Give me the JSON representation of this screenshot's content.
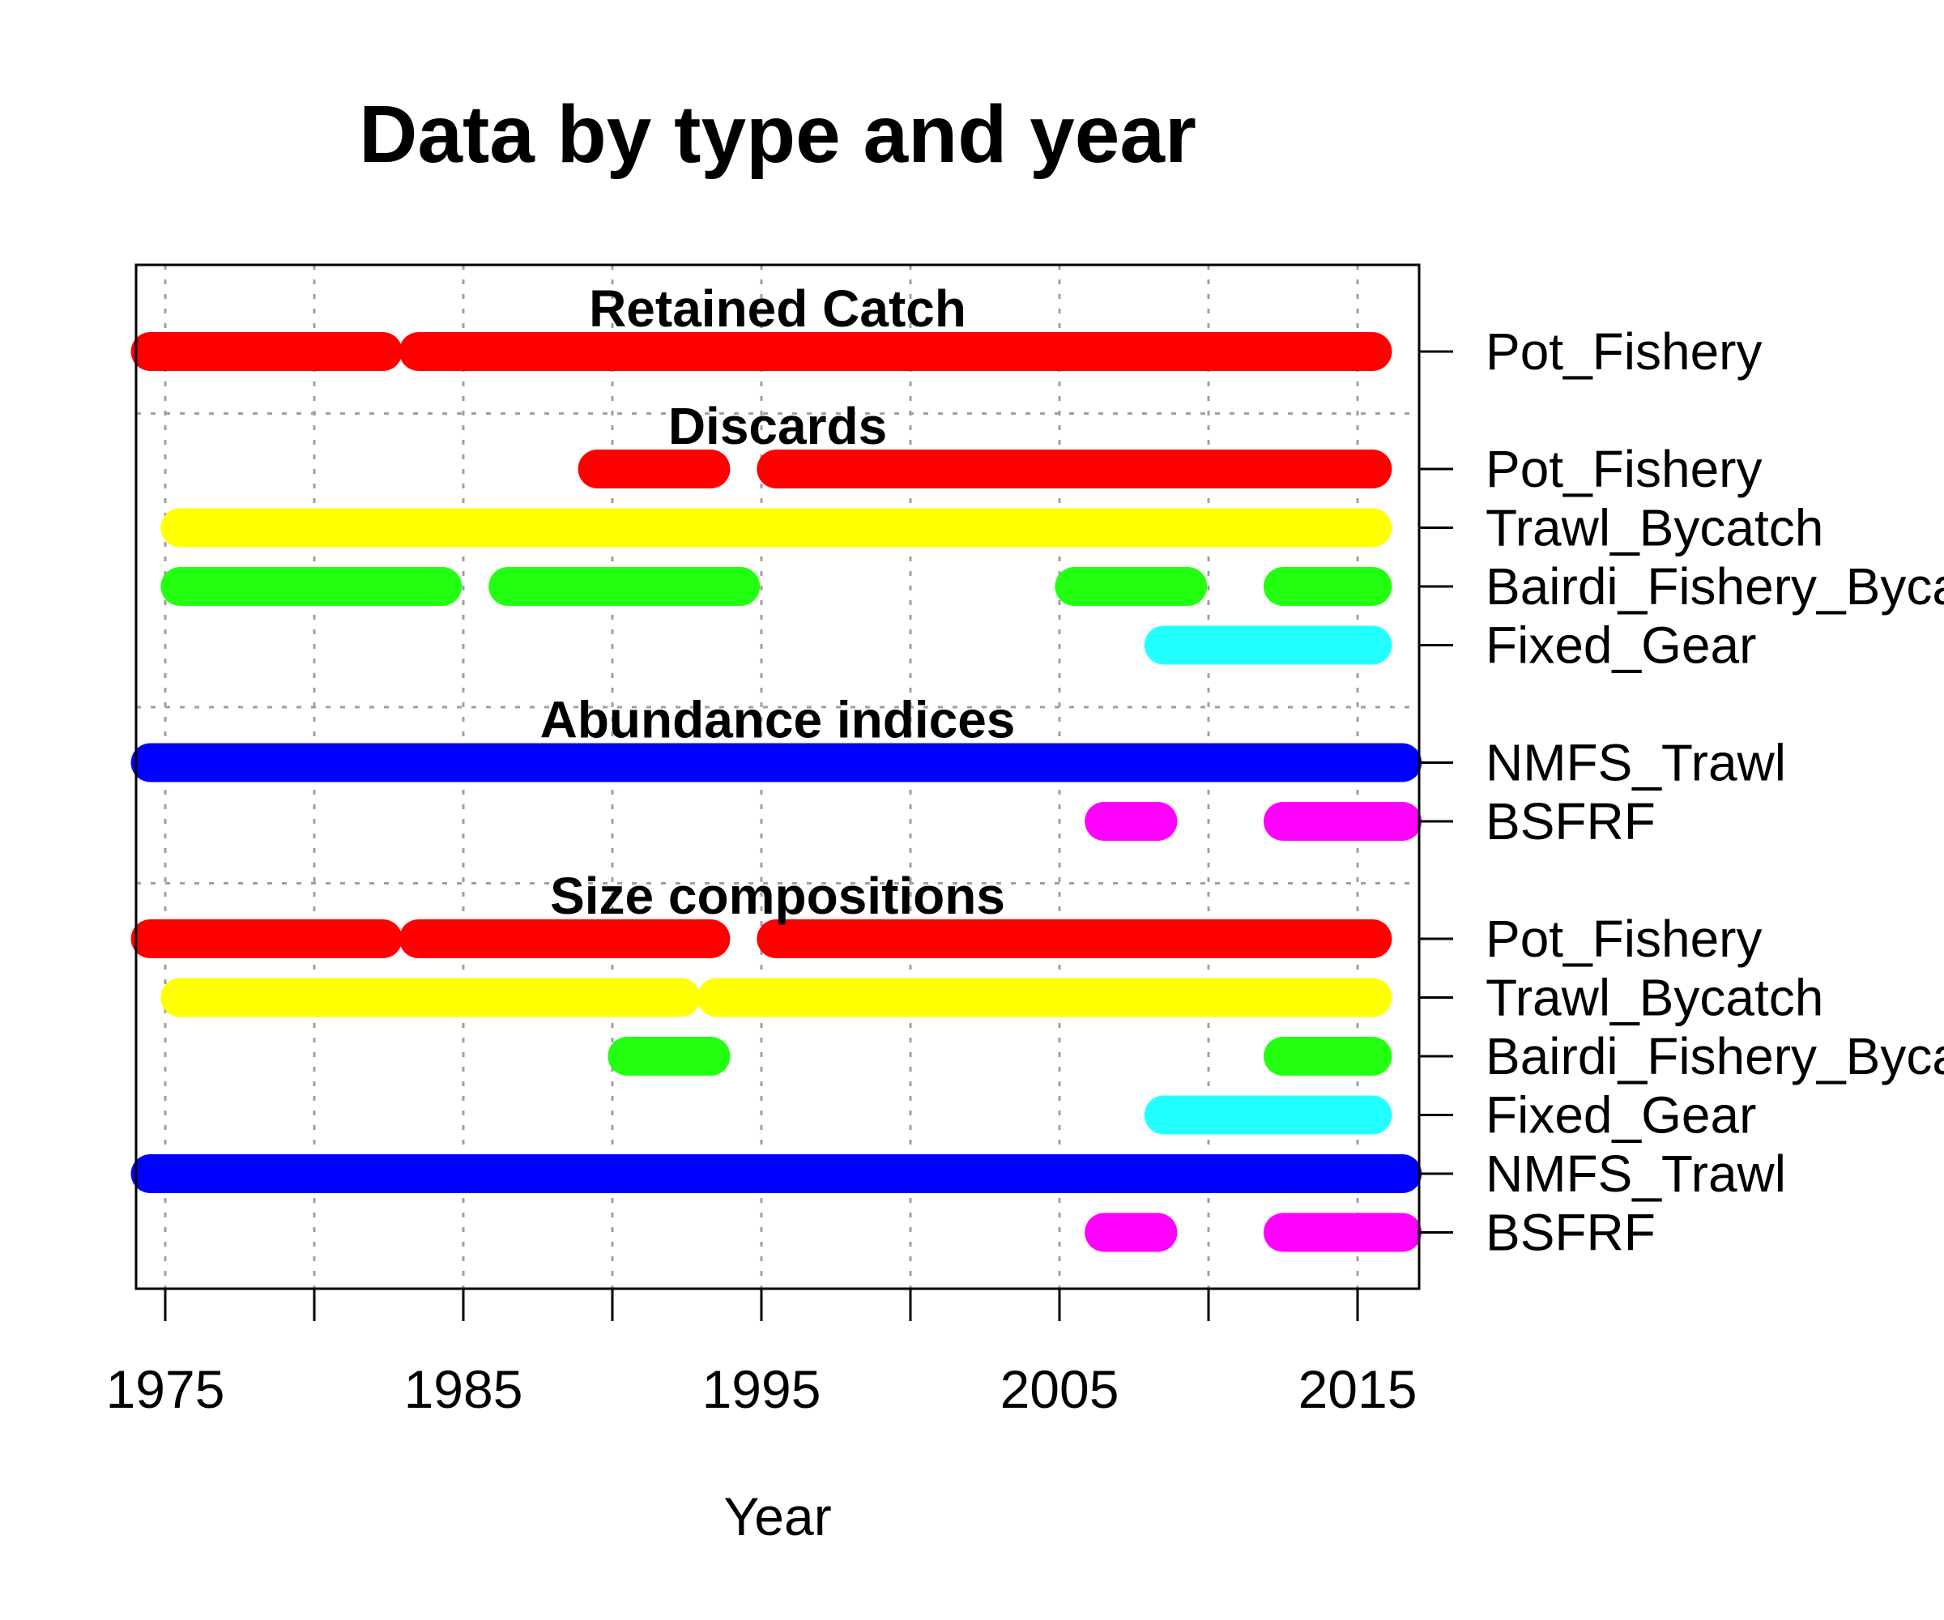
{
  "chart_data": {
    "type": "timeline",
    "title": "Data by type and year",
    "xlabel": "Year",
    "ylabel": "",
    "xlim": [
      1974.1,
      2017.1
    ],
    "x_ticks": [
      1975,
      1980,
      1985,
      1990,
      1995,
      2000,
      2005,
      2010,
      2015
    ],
    "x_tick_labels": [
      "1975",
      "1985",
      "1995",
      "2005",
      "2015"
    ],
    "grid": true,
    "sections": [
      {
        "name": "Retained Catch",
        "rows": [
          {
            "label": "Pot_Fishery",
            "color": "#ff0000",
            "ranges": [
              [
                1974.5,
                1982.3
              ],
              [
                1983.5,
                2015.5
              ]
            ]
          }
        ]
      },
      {
        "name": "Discards",
        "rows": [
          {
            "label": "Pot_Fishery",
            "color": "#ff0000",
            "ranges": [
              [
                1989.5,
                1993.3
              ],
              [
                1995.5,
                2015.5
              ]
            ]
          },
          {
            "label": "Trawl_Bycatch",
            "color": "#ffff00",
            "ranges": [
              [
                1975.5,
                2015.5
              ]
            ]
          },
          {
            "label": "Bairdi_Fishery_Bycatch",
            "color": "#22ff11",
            "ranges": [
              [
                1975.5,
                1984.3
              ],
              [
                1986.5,
                1994.3
              ],
              [
                2005.5,
                2009.3
              ],
              [
                2012.5,
                2015.5
              ]
            ]
          },
          {
            "label": "Fixed_Gear",
            "color": "#22ffff",
            "ranges": [
              [
                2008.5,
                2015.5
              ]
            ]
          }
        ]
      },
      {
        "name": "Abundance indices",
        "rows": [
          {
            "label": "NMFS_Trawl",
            "color": "#0000ff",
            "ranges": [
              [
                1974.5,
                2016.5
              ]
            ]
          },
          {
            "label": "BSFRF",
            "color": "#ff00ff",
            "ranges": [
              [
                2006.5,
                2008.3
              ],
              [
                2012.5,
                2016.5
              ]
            ]
          }
        ]
      },
      {
        "name": "Size compositions",
        "rows": [
          {
            "label": "Pot_Fishery",
            "color": "#ff0000",
            "ranges": [
              [
                1974.5,
                1982.3
              ],
              [
                1983.5,
                1993.3
              ],
              [
                1995.5,
                2015.5
              ]
            ]
          },
          {
            "label": "Trawl_Bycatch",
            "color": "#ffff00",
            "ranges": [
              [
                1975.5,
                1992.3
              ],
              [
                1993.5,
                2015.5
              ]
            ]
          },
          {
            "label": "Bairdi_Fishery_Bycatch",
            "color": "#22ff11",
            "ranges": [
              [
                1990.5,
                1993.3
              ],
              [
                2012.5,
                2015.5
              ]
            ]
          },
          {
            "label": "Fixed_Gear",
            "color": "#22ffff",
            "ranges": [
              [
                2008.5,
                2015.5
              ]
            ]
          },
          {
            "label": "NMFS_Trawl",
            "color": "#0000ff",
            "ranges": [
              [
                1974.5,
                2016.5
              ]
            ]
          },
          {
            "label": "BSFRF",
            "color": "#ff00ff",
            "ranges": [
              [
                2006.5,
                2008.3
              ],
              [
                2012.5,
                2016.5
              ]
            ]
          }
        ]
      }
    ]
  }
}
